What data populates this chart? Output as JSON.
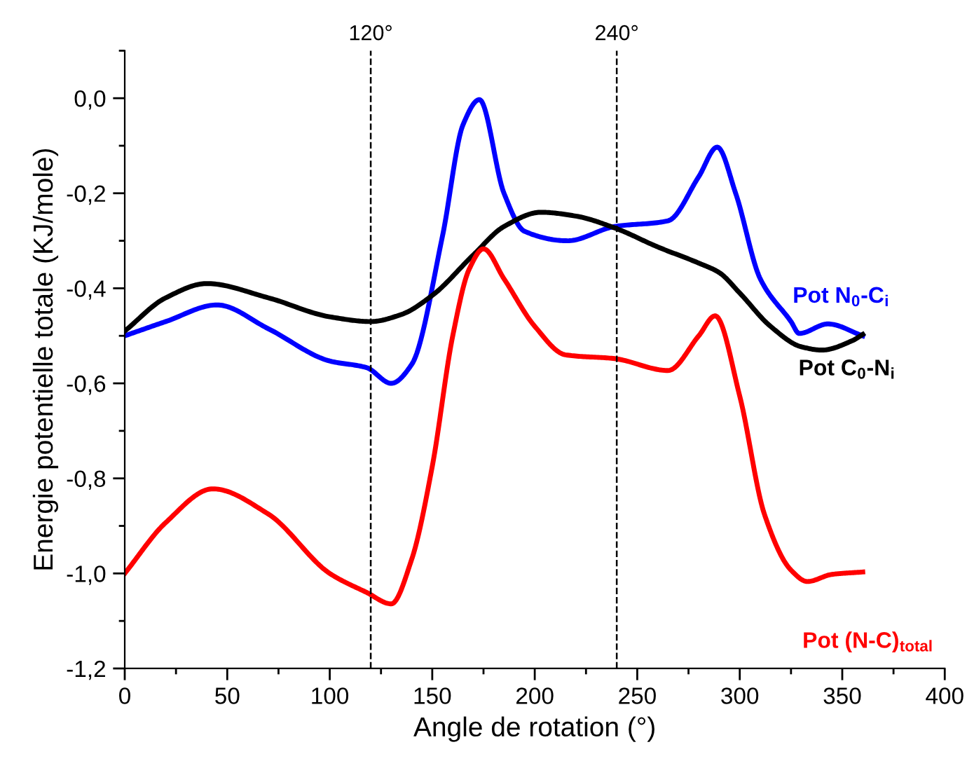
{
  "chart_data": {
    "type": "line",
    "xlabel": "Angle de rotation (°)",
    "ylabel": "Energie potentielle totale (KJ/mole)",
    "xlim": [
      0,
      400
    ],
    "xticks": [
      0,
      50,
      100,
      150,
      200,
      250,
      300,
      350,
      400
    ],
    "ylim": [
      -1.2,
      0.1
    ],
    "yticks": [
      {
        "value": -1.2,
        "label": "-1,2"
      },
      {
        "value": -1.0,
        "label": "-1,0"
      },
      {
        "value": -0.8,
        "label": "-0,8"
      },
      {
        "value": -0.6,
        "label": "-0,6"
      },
      {
        "value": -0.4,
        "label": "-0,4"
      },
      {
        "value": -0.2,
        "label": "-0,2"
      },
      {
        "value": 0.0,
        "label": "0,0"
      }
    ],
    "grid": false,
    "legend": false,
    "marker": "none",
    "line_style": "solid",
    "ref_lines": [
      {
        "axis": "x",
        "value": 120,
        "label": "120°",
        "color": "#000000",
        "line_style": "dashed"
      },
      {
        "axis": "x",
        "value": 240,
        "label": "240°",
        "color": "#000000",
        "line_style": "dashed"
      }
    ],
    "series": [
      {
        "name": "Pot N$_{0}$-C$_{i}$",
        "color": "#0000ff",
        "x": [
          0,
          20,
          45,
          70,
          100,
          118,
          130,
          140,
          155,
          165,
          173,
          185,
          195,
          216,
          239,
          265,
          280,
          289,
          298,
          310,
          325,
          329,
          343,
          360
        ],
        "values": [
          -0.5,
          -0.47,
          -0.435,
          -0.485,
          -0.553,
          -0.567,
          -0.6,
          -0.56,
          -0.29,
          -0.056,
          -0.003,
          -0.2,
          -0.28,
          -0.3,
          -0.27,
          -0.258,
          -0.165,
          -0.103,
          -0.2,
          -0.38,
          -0.47,
          -0.495,
          -0.475,
          -0.5
        ]
      },
      {
        "name": "Pot C$_{0}$-N$_{i}$",
        "color": "#000000",
        "x": [
          0,
          20,
          40,
          70,
          100,
          120,
          135,
          150,
          170,
          185,
          203,
          220,
          239,
          260,
          280,
          290,
          300,
          315,
          330,
          340,
          355,
          360
        ],
        "values": [
          -0.49,
          -0.42,
          -0.39,
          -0.42,
          -0.46,
          -0.47,
          -0.455,
          -0.415,
          -0.33,
          -0.27,
          -0.24,
          -0.248,
          -0.273,
          -0.313,
          -0.347,
          -0.367,
          -0.41,
          -0.48,
          -0.523,
          -0.53,
          -0.51,
          -0.497
        ]
      },
      {
        "name": "Pot (N-C)$_{total}$",
        "color": "#ff0000",
        "x": [
          0,
          20,
          43,
          70,
          100,
          118,
          130,
          140,
          150,
          160,
          168,
          175,
          185,
          200,
          215,
          239,
          265,
          280,
          288,
          300,
          312,
          325,
          333,
          345,
          360
        ],
        "values": [
          -1.0,
          -0.893,
          -0.822,
          -0.875,
          -1.0,
          -1.04,
          -1.064,
          -0.97,
          -0.775,
          -0.5,
          -0.36,
          -0.317,
          -0.38,
          -0.48,
          -0.54,
          -0.548,
          -0.573,
          -0.5,
          -0.458,
          -0.627,
          -0.875,
          -0.993,
          -1.017,
          -1.002,
          -0.997
        ]
      }
    ]
  }
}
